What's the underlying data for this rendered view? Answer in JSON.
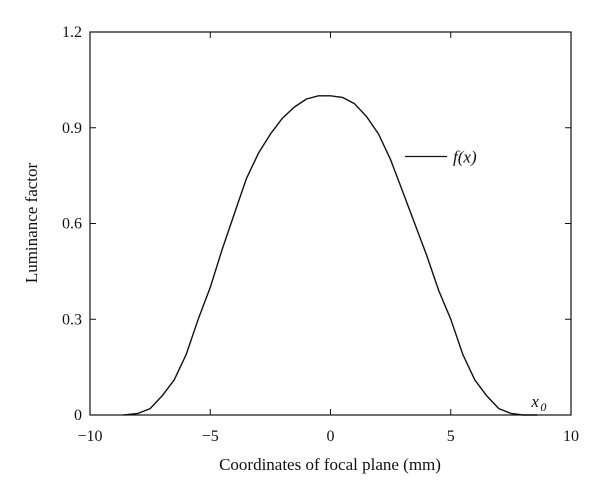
{
  "chart_data": {
    "type": "line",
    "title": "",
    "xlabel": "Coordinates of focal plane (mm)",
    "ylabel": "Luminance factor",
    "xlim": [
      -10,
      10
    ],
    "ylim": [
      0,
      1.2
    ],
    "x_ticks": [
      -10,
      -5,
      0,
      5,
      10
    ],
    "x_tick_labels": [
      "−10",
      "−5",
      "0",
      "5",
      "10"
    ],
    "y_ticks": [
      0,
      0.3,
      0.6,
      0.9,
      1.2
    ],
    "y_tick_labels": [
      "0",
      "0.3",
      "0.6",
      "0.9",
      "1.2"
    ],
    "grid": false,
    "line_color": "#111111",
    "series": [
      {
        "name": "f(x)",
        "x": [
          -8.6,
          -8.0,
          -7.5,
          -7.0,
          -6.5,
          -6.0,
          -5.5,
          -5.0,
          -4.5,
          -4.0,
          -3.5,
          -3.0,
          -2.5,
          -2.0,
          -1.5,
          -1.0,
          -0.5,
          0.0,
          0.5,
          1.0,
          1.5,
          2.0,
          2.5,
          3.0,
          3.5,
          4.0,
          4.5,
          5.0,
          5.5,
          6.0,
          6.5,
          7.0,
          7.5,
          8.0,
          8.6
        ],
        "y": [
          0.0,
          0.005,
          0.02,
          0.06,
          0.11,
          0.19,
          0.3,
          0.4,
          0.52,
          0.63,
          0.74,
          0.82,
          0.88,
          0.93,
          0.965,
          0.99,
          1.0,
          1.0,
          0.995,
          0.975,
          0.935,
          0.88,
          0.8,
          0.7,
          0.6,
          0.5,
          0.39,
          0.3,
          0.19,
          0.11,
          0.06,
          0.02,
          0.005,
          0.0,
          0.0
        ]
      }
    ],
    "annotations": [
      {
        "text": "f(x)",
        "x": 3.1,
        "y": 0.81
      },
      {
        "text": "x",
        "subscript": "0",
        "x": 8.6,
        "y": 0.0
      }
    ]
  }
}
